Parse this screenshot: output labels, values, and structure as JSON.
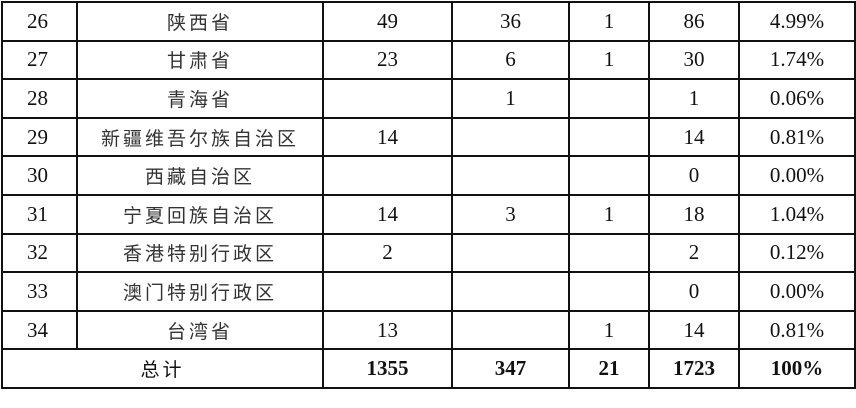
{
  "rows": [
    {
      "no": "26",
      "name": "陕西省",
      "c1": "49",
      "c2": "36",
      "c3": "1",
      "total": "86",
      "pct": "4.99%"
    },
    {
      "no": "27",
      "name": "甘肃省",
      "c1": "23",
      "c2": "6",
      "c3": "1",
      "total": "30",
      "pct": "1.74%"
    },
    {
      "no": "28",
      "name": "青海省",
      "c1": "",
      "c2": "1",
      "c3": "",
      "total": "1",
      "pct": "0.06%"
    },
    {
      "no": "29",
      "name": "新疆维吾尔族自治区",
      "c1": "14",
      "c2": "",
      "c3": "",
      "total": "14",
      "pct": "0.81%"
    },
    {
      "no": "30",
      "name": "西藏自治区",
      "c1": "",
      "c2": "",
      "c3": "",
      "total": "0",
      "pct": "0.00%"
    },
    {
      "no": "31",
      "name": "宁夏回族自治区",
      "c1": "14",
      "c2": "3",
      "c3": "1",
      "total": "18",
      "pct": "1.04%"
    },
    {
      "no": "32",
      "name": "香港特别行政区",
      "c1": "2",
      "c2": "",
      "c3": "",
      "total": "2",
      "pct": "0.12%"
    },
    {
      "no": "33",
      "name": "澳门特别行政区",
      "c1": "",
      "c2": "",
      "c3": "",
      "total": "0",
      "pct": "0.00%"
    },
    {
      "no": "34",
      "name": "台湾省",
      "c1": "13",
      "c2": "",
      "c3": "1",
      "total": "14",
      "pct": "0.81%"
    }
  ],
  "total_row": {
    "label": "总计",
    "c1": "1355",
    "c2": "347",
    "c3": "21",
    "total": "1723",
    "pct": "100%"
  }
}
